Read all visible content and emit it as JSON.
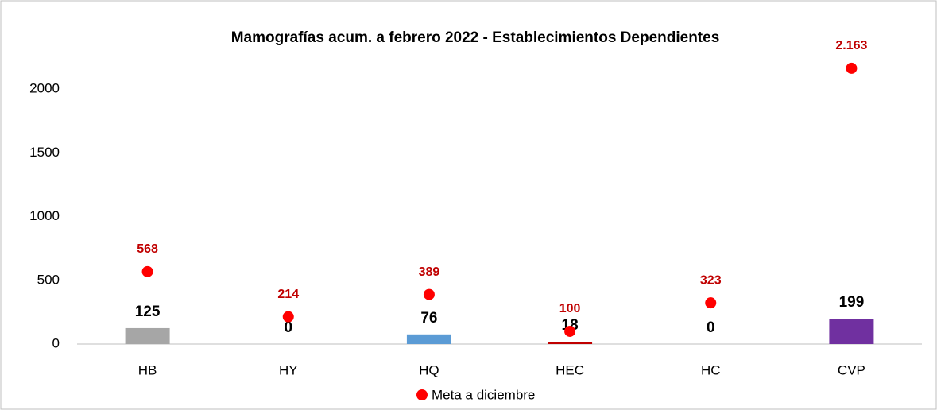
{
  "chart_data": {
    "type": "bar",
    "title": "Mamografías acum. a febrero 2022 - Establecimientos Dependientes",
    "categories": [
      "HB",
      "HY",
      "HQ",
      "HEC",
      "HC",
      "CVP"
    ],
    "bars": {
      "values": [
        125,
        0,
        76,
        18,
        0,
        199
      ],
      "colors": [
        "#a6a6a6",
        "#a6a6a6",
        "#5b9bd5",
        "#c00000",
        "#a6a6a6",
        "#7030a0"
      ]
    },
    "series": [
      {
        "name": "Meta a diciembre",
        "color": "#ff0000",
        "values": [
          568,
          214,
          389,
          100,
          323,
          2163
        ],
        "value_labels": [
          "568",
          "214",
          "389",
          "100",
          "323",
          "2.163"
        ]
      }
    ],
    "ylim": [
      0,
      2200
    ],
    "yticks": [
      0,
      500,
      1000,
      1500,
      2000
    ],
    "grid": false,
    "legend": "bottom"
  }
}
